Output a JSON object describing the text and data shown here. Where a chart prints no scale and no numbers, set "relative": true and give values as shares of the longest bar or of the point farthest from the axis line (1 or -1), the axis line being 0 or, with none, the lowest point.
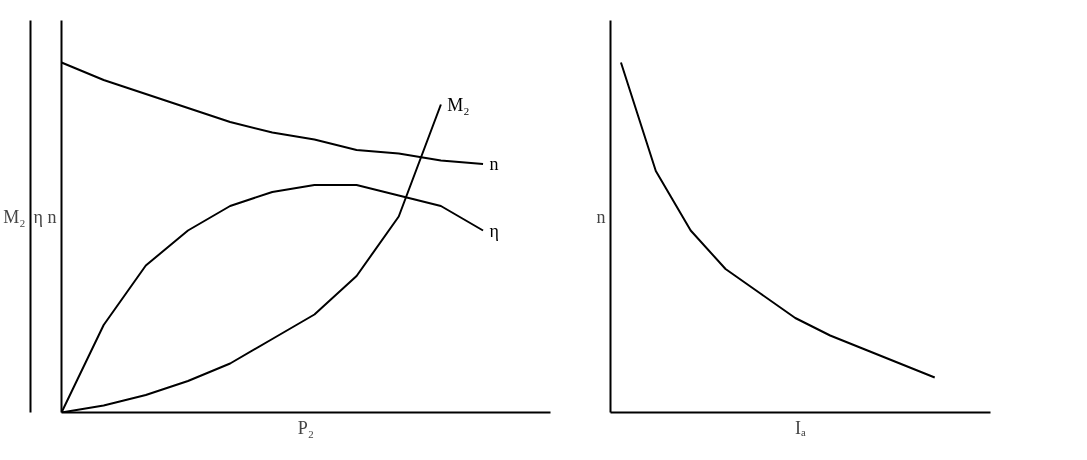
{
  "chart_data": [
    {
      "type": "line",
      "relative": true,
      "xlabel": "P₂",
      "ylabel": "η n",
      "y2label": "M₂",
      "legend": false,
      "categories": [
        null,
        null,
        null,
        null,
        null,
        null,
        null,
        null,
        null,
        null,
        null
      ],
      "series": [
        {
          "name": "n",
          "color": "#000000",
          "values": [
            1,
            0.95,
            0.91,
            0.87,
            0.83,
            0.8,
            0.78,
            0.75,
            0.74,
            0.72,
            0.71
          ]
        },
        {
          "name": "η",
          "color": "#000000",
          "values": [
            0,
            0.25,
            0.42,
            0.52,
            0.59,
            0.63,
            0.65,
            0.65,
            0.62,
            0.59,
            0.52
          ]
        },
        {
          "name": "M₂",
          "color": "#000000",
          "values": [
            0,
            0.02,
            0.05,
            0.09,
            0.14,
            0.21,
            0.28,
            0.39,
            0.56,
            0.88,
            null
          ]
        }
      ]
    },
    {
      "type": "line",
      "relative": true,
      "xlabel": "Iₐ",
      "ylabel": "n",
      "legend": false,
      "categories": [
        null,
        null,
        null,
        null,
        null,
        null,
        null,
        null,
        null,
        null
      ],
      "series": [
        {
          "color": "#000000",
          "values": [
            1,
            0.69,
            0.52,
            0.41,
            0.34,
            0.27,
            0.22,
            0.18,
            0.14,
            0.1
          ]
        }
      ]
    }
  ]
}
